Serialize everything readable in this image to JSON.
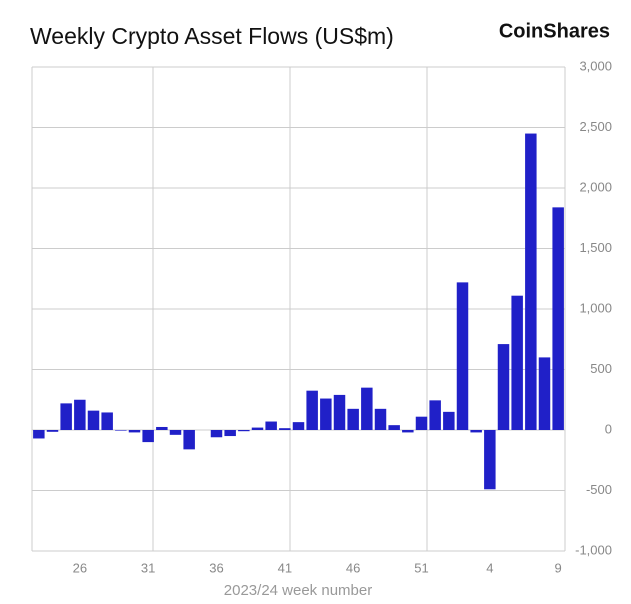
{
  "chart_data": {
    "type": "bar",
    "title": "Weekly Crypto Asset Flows (US$m)",
    "brand": "CoinShares",
    "x_label": "2023/24 week number",
    "categories": [
      null,
      null,
      null,
      "26",
      null,
      null,
      null,
      null,
      "31",
      null,
      null,
      null,
      null,
      "36",
      null,
      null,
      null,
      null,
      "41",
      null,
      null,
      null,
      null,
      "46",
      null,
      null,
      null,
      null,
      "51",
      null,
      null,
      null,
      null,
      "4",
      null,
      null,
      null,
      null,
      "9"
    ],
    "values": [
      -70,
      -15,
      220,
      250,
      160,
      145,
      -5,
      -20,
      -100,
      25,
      -40,
      -160,
      0,
      -60,
      -50,
      -10,
      20,
      70,
      15,
      65,
      325,
      260,
      290,
      175,
      350,
      175,
      40,
      -20,
      110,
      245,
      150,
      1220,
      -20,
      -490,
      710,
      1110,
      2450,
      600,
      1840
    ],
    "color": "#2020c8",
    "ylim": [
      -1000,
      3000
    ],
    "yticks": [
      {
        "value": -1000,
        "label": "-1,000"
      },
      {
        "value": -500,
        "label": "-500"
      },
      0,
      500,
      {
        "value": 1000,
        "label": "1,000"
      },
      {
        "value": 1500,
        "label": "1,500"
      },
      {
        "value": 2000,
        "label": "2,000"
      },
      {
        "value": 2500,
        "label": "2,500"
      },
      {
        "value": 3000,
        "label": "3,000"
      }
    ],
    "grid": true
  }
}
